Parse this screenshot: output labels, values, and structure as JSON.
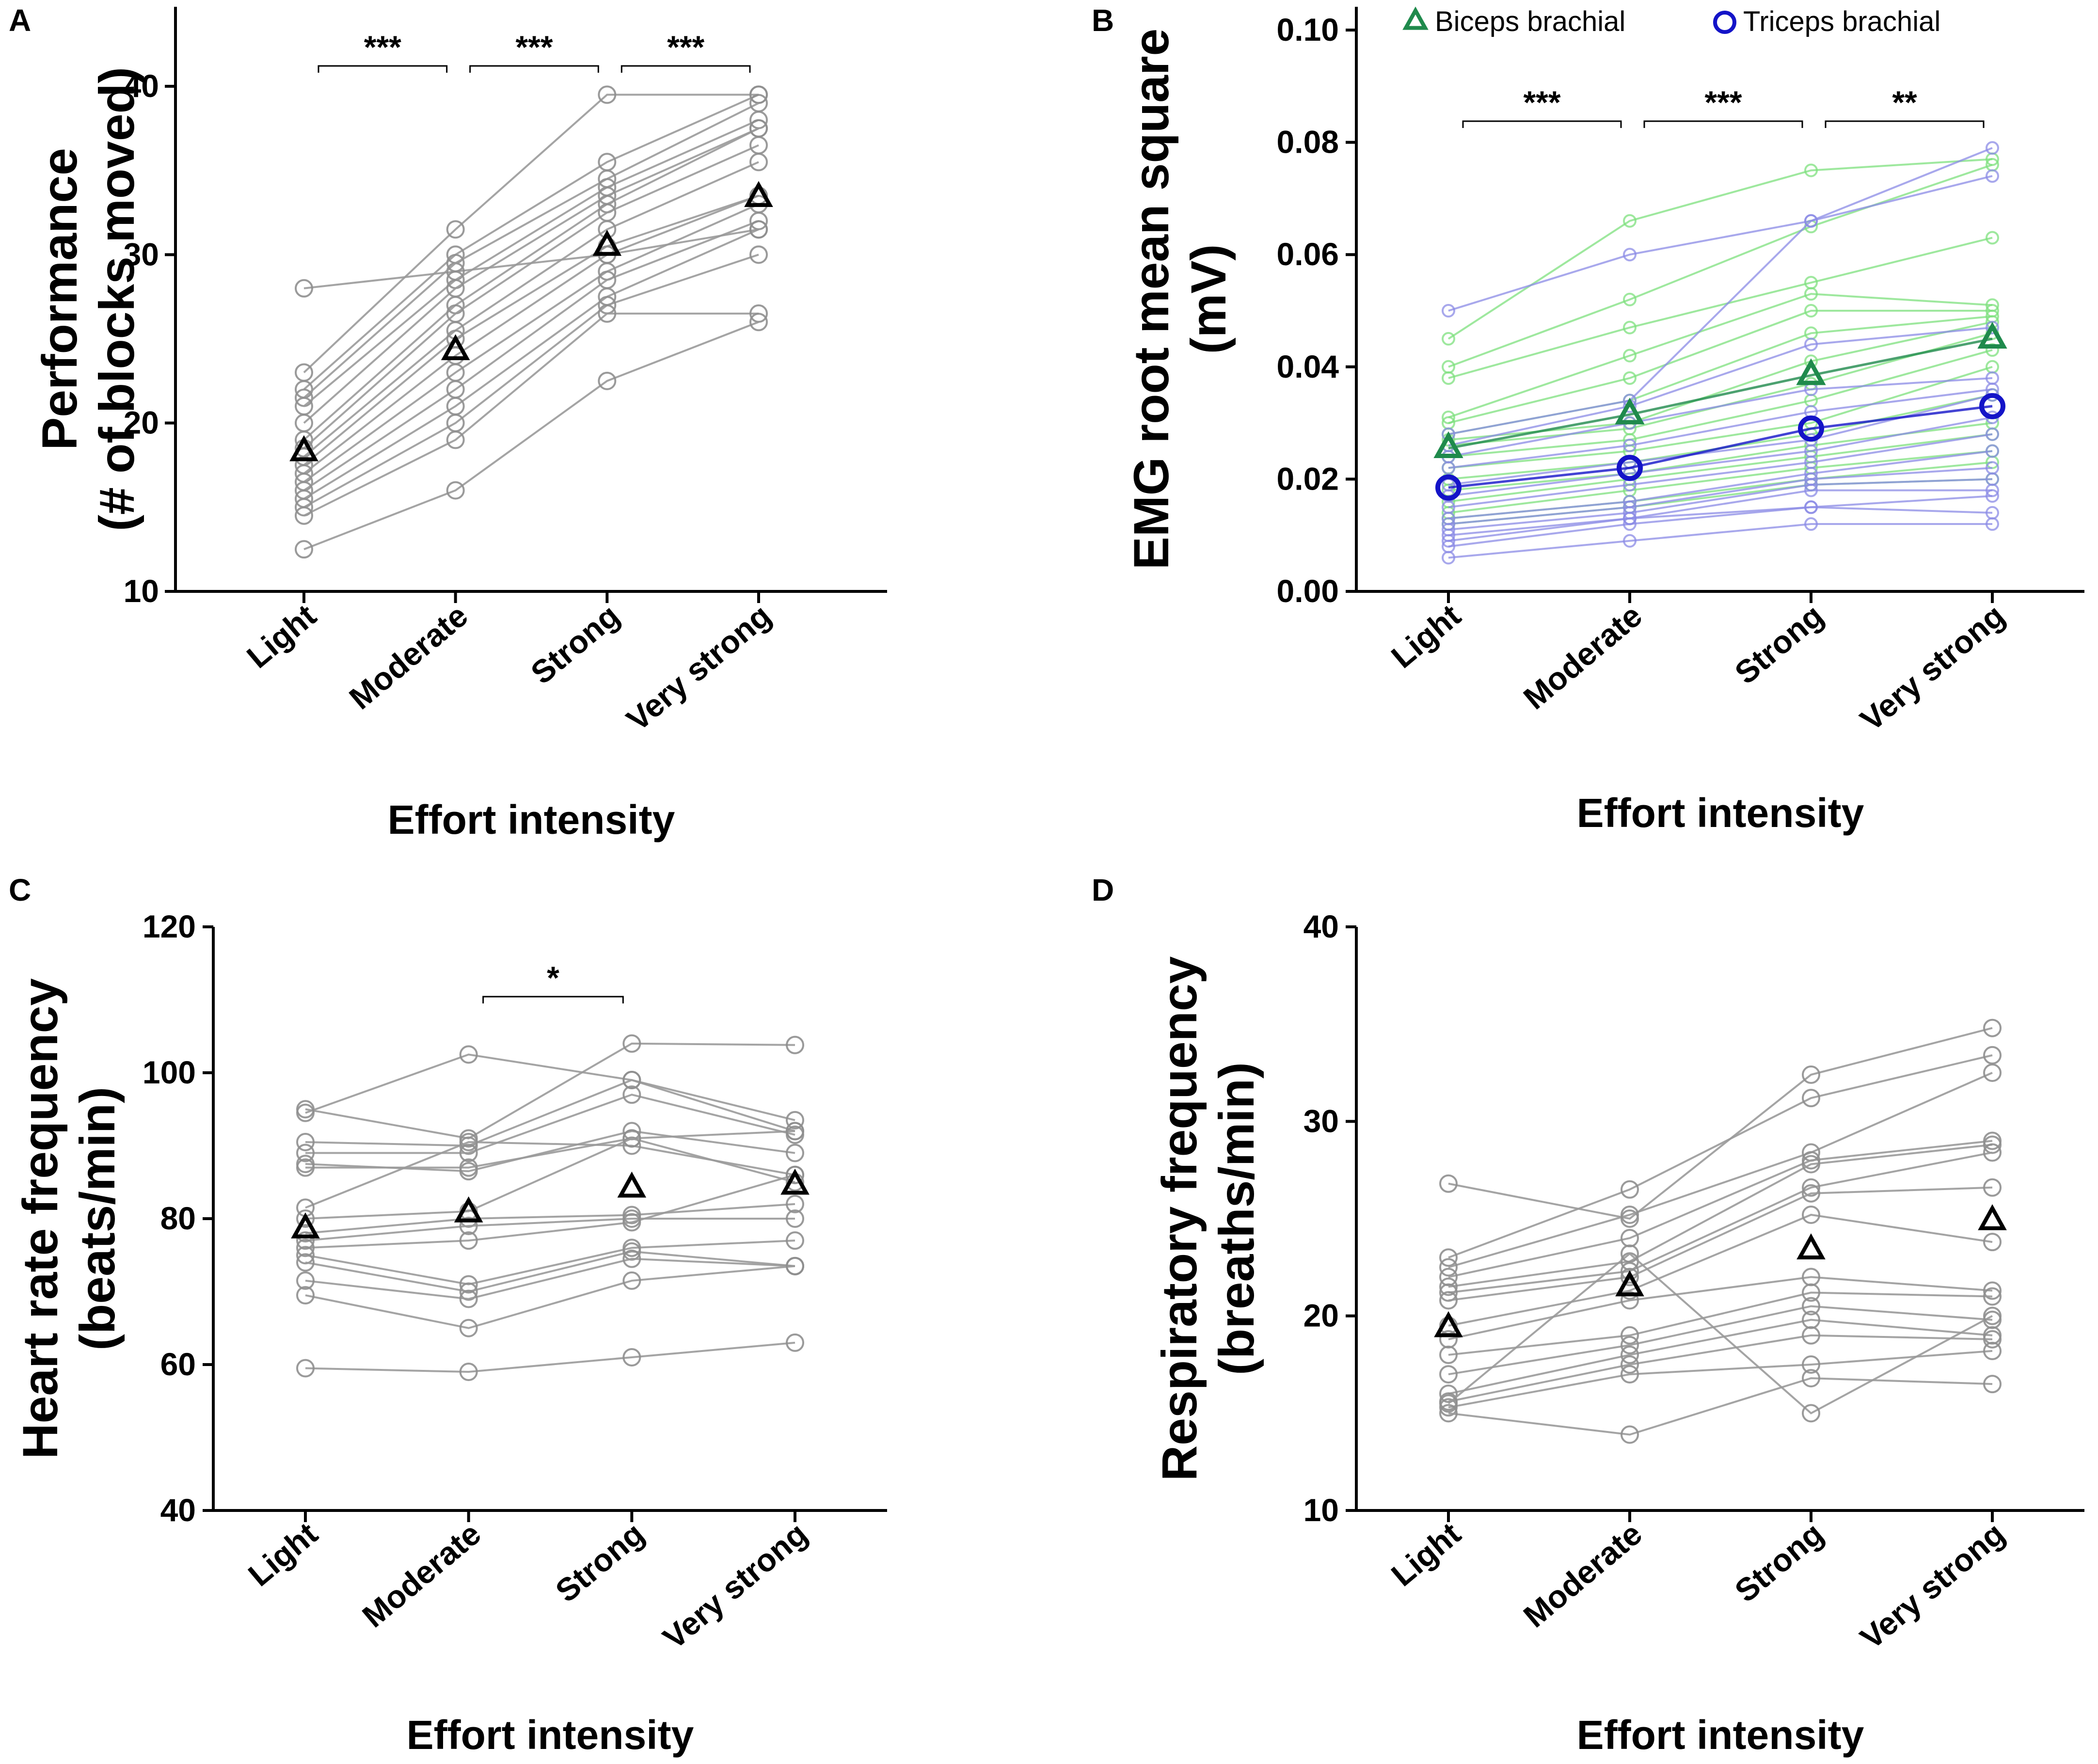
{
  "colors": {
    "grey_line": "#9a9a9a",
    "grey_marker": "#8f8f8f",
    "mean_marker": "#000000",
    "biceps": "#1f8a4c",
    "biceps_light": "#7ee07e",
    "triceps": "#1414c8",
    "triceps_light": "#8b8be6"
  },
  "chart_data": [
    {
      "panel": "A",
      "type": "line",
      "title": "",
      "ylabel_line1": "Performance",
      "ylabel_line2": "(# of blocks moved)",
      "xlabel": "Effort intensity",
      "categories": [
        "Light",
        "Moderate",
        "Strong",
        "Very strong"
      ],
      "ylim": [
        10,
        45
      ],
      "yticks": [
        10,
        20,
        30,
        40
      ],
      "subjects": [
        [
          28,
          29,
          30,
          31.5
        ],
        [
          23,
          31.5,
          39.5,
          39.5
        ],
        [
          22,
          30,
          35.5,
          39.5
        ],
        [
          21.5,
          29.5,
          34.5,
          39
        ],
        [
          21,
          28.5,
          34,
          38
        ],
        [
          20,
          28,
          33.5,
          37.5
        ],
        [
          19,
          27,
          33,
          37.5
        ],
        [
          18.5,
          26.5,
          32.5,
          36.5
        ],
        [
          18,
          25.5,
          31.5,
          35.5
        ],
        [
          17.5,
          25,
          30.5,
          33.5
        ],
        [
          17,
          24,
          30,
          33.5
        ],
        [
          16.5,
          23,
          29,
          33
        ],
        [
          16,
          22,
          28.5,
          32
        ],
        [
          15.5,
          21,
          27.5,
          31.5
        ],
        [
          15,
          20,
          27,
          30
        ],
        [
          14.5,
          19,
          26.5,
          26.5
        ],
        [
          12.5,
          16,
          22.5,
          26
        ]
      ],
      "mean": [
        18.3,
        24.3,
        30.5,
        33.4
      ],
      "significance": [
        {
          "from": 0,
          "to": 1,
          "label": "***"
        },
        {
          "from": 1,
          "to": 2,
          "label": "***"
        },
        {
          "from": 2,
          "to": 3,
          "label": "***"
        }
      ]
    },
    {
      "panel": "B",
      "type": "line",
      "title": "",
      "ylabel_line1": "EMG root mean square",
      "ylabel_line2": "(mV)",
      "xlabel": "Effort intensity",
      "categories": [
        "Light",
        "Moderate",
        "Strong",
        "Very strong"
      ],
      "ylim": [
        0,
        0.105
      ],
      "yticks": [
        0.0,
        0.02,
        0.04,
        0.06,
        0.08,
        0.1
      ],
      "ytick_labels": [
        "0.00",
        "0.02",
        "0.04",
        "0.06",
        "0.08",
        "0.10"
      ],
      "legend": {
        "biceps_label": "Biceps brachial",
        "triceps_label": "Triceps brachial"
      },
      "biceps_subjects": [
        [
          0.045,
          0.066,
          0.075,
          0.077
        ],
        [
          0.04,
          0.052,
          0.065,
          0.076
        ],
        [
          0.038,
          0.047,
          0.055,
          0.063
        ],
        [
          0.031,
          0.042,
          0.053,
          0.051
        ],
        [
          0.03,
          0.038,
          0.05,
          0.05
        ],
        [
          0.028,
          0.034,
          0.046,
          0.049
        ],
        [
          0.027,
          0.03,
          0.041,
          0.048
        ],
        [
          0.026,
          0.029,
          0.037,
          0.046
        ],
        [
          0.024,
          0.027,
          0.034,
          0.043
        ],
        [
          0.022,
          0.025,
          0.03,
          0.04
        ],
        [
          0.02,
          0.023,
          0.028,
          0.035
        ],
        [
          0.018,
          0.021,
          0.026,
          0.03
        ],
        [
          0.016,
          0.02,
          0.024,
          0.028
        ],
        [
          0.014,
          0.018,
          0.022,
          0.025
        ],
        [
          0.013,
          0.016,
          0.02,
          0.023
        ],
        [
          0.012,
          0.015,
          0.019,
          0.02
        ]
      ],
      "triceps_subjects": [
        [
          0.05,
          0.06,
          0.066,
          0.079
        ],
        [
          0.028,
          0.034,
          0.066,
          0.074
        ],
        [
          0.026,
          0.033,
          0.044,
          0.047
        ],
        [
          0.024,
          0.03,
          0.036,
          0.038
        ],
        [
          0.022,
          0.026,
          0.032,
          0.036
        ],
        [
          0.019,
          0.023,
          0.027,
          0.035
        ],
        [
          0.017,
          0.021,
          0.025,
          0.031
        ],
        [
          0.015,
          0.019,
          0.023,
          0.028
        ],
        [
          0.013,
          0.016,
          0.021,
          0.025
        ],
        [
          0.012,
          0.015,
          0.02,
          0.022
        ],
        [
          0.011,
          0.014,
          0.019,
          0.02
        ],
        [
          0.01,
          0.013,
          0.018,
          0.018
        ],
        [
          0.009,
          0.013,
          0.015,
          0.017
        ],
        [
          0.008,
          0.012,
          0.015,
          0.014
        ],
        [
          0.006,
          0.009,
          0.012,
          0.012
        ]
      ],
      "biceps_mean": [
        0.0255,
        0.0315,
        0.0385,
        0.045
      ],
      "triceps_mean": [
        0.0185,
        0.022,
        0.029,
        0.033
      ],
      "significance": [
        {
          "from": 0,
          "to": 1,
          "label": "***"
        },
        {
          "from": 1,
          "to": 2,
          "label": "***"
        },
        {
          "from": 2,
          "to": 3,
          "label": "**"
        }
      ]
    },
    {
      "panel": "C",
      "type": "line",
      "title": "",
      "ylabel_line1": "Heart rate frequency",
      "ylabel_line2": "(beats/min)",
      "xlabel": "Effort intensity",
      "categories": [
        "Light",
        "Moderate",
        "Strong",
        "Very strong"
      ],
      "ylim": [
        40,
        120
      ],
      "yticks": [
        40,
        60,
        80,
        100,
        120
      ],
      "subjects": [
        [
          95,
          91,
          104,
          103.8
        ],
        [
          94.5,
          102.5,
          99,
          93.5
        ],
        [
          90.5,
          90,
          99,
          92
        ],
        [
          89,
          89,
          97,
          91.5
        ],
        [
          87.5,
          86.5,
          92,
          89
        ],
        [
          87,
          87,
          91,
          92
        ],
        [
          81.5,
          90.5,
          90,
          86
        ],
        [
          80,
          81,
          91,
          85
        ],
        [
          78,
          80,
          80.5,
          82
        ],
        [
          77,
          79,
          80,
          80
        ],
        [
          76,
          77,
          79.5,
          86
        ],
        [
          75,
          71,
          76,
          77
        ],
        [
          74,
          70,
          75.5,
          73.5
        ],
        [
          71.5,
          69,
          74.5,
          73.5
        ],
        [
          69.5,
          65,
          71.5,
          73.5
        ],
        [
          59.5,
          59,
          61,
          63
        ]
      ],
      "mean": [
        78.6,
        80.8,
        84.2,
        84.6
      ],
      "significance": [
        {
          "from": 1,
          "to": 2,
          "label": "*"
        }
      ]
    },
    {
      "panel": "D",
      "type": "line",
      "title": "",
      "ylabel_line1": "Respiratory frequency",
      "ylabel_line2": "(breaths/min)",
      "xlabel": "Effort intensity",
      "categories": [
        "Light",
        "Moderate",
        "Strong",
        "Very strong"
      ],
      "ylim": [
        10,
        40
      ],
      "yticks": [
        10,
        20,
        30,
        40
      ],
      "subjects": [
        [
          26.8,
          25.0,
          32.4,
          34.8
        ],
        [
          23.0,
          26.5,
          31.2,
          33.4
        ],
        [
          22.5,
          25.2,
          28.4,
          32.5
        ],
        [
          22.0,
          24.0,
          28.0,
          29.0
        ],
        [
          21.5,
          22.8,
          27.8,
          28.8
        ],
        [
          21.2,
          22.3,
          26.6,
          28.4
        ],
        [
          20.8,
          22.0,
          26.3,
          26.6
        ],
        [
          19.5,
          21.3,
          25.2,
          23.8
        ],
        [
          18.8,
          20.8,
          22.0,
          21.3
        ],
        [
          18.0,
          19.0,
          21.2,
          21.0
        ],
        [
          17.0,
          18.5,
          20.5,
          19.8
        ],
        [
          16.0,
          18.0,
          19.8,
          19.0
        ],
        [
          15.6,
          17.5,
          19.0,
          18.8
        ],
        [
          15.3,
          17.0,
          17.5,
          18.2
        ],
        [
          15.0,
          13.9,
          16.8,
          16.5
        ],
        [
          15.5,
          23.2,
          15.0,
          20.0
        ]
      ],
      "mean": [
        19.4,
        21.5,
        23.4,
        24.9
      ],
      "significance": []
    }
  ]
}
